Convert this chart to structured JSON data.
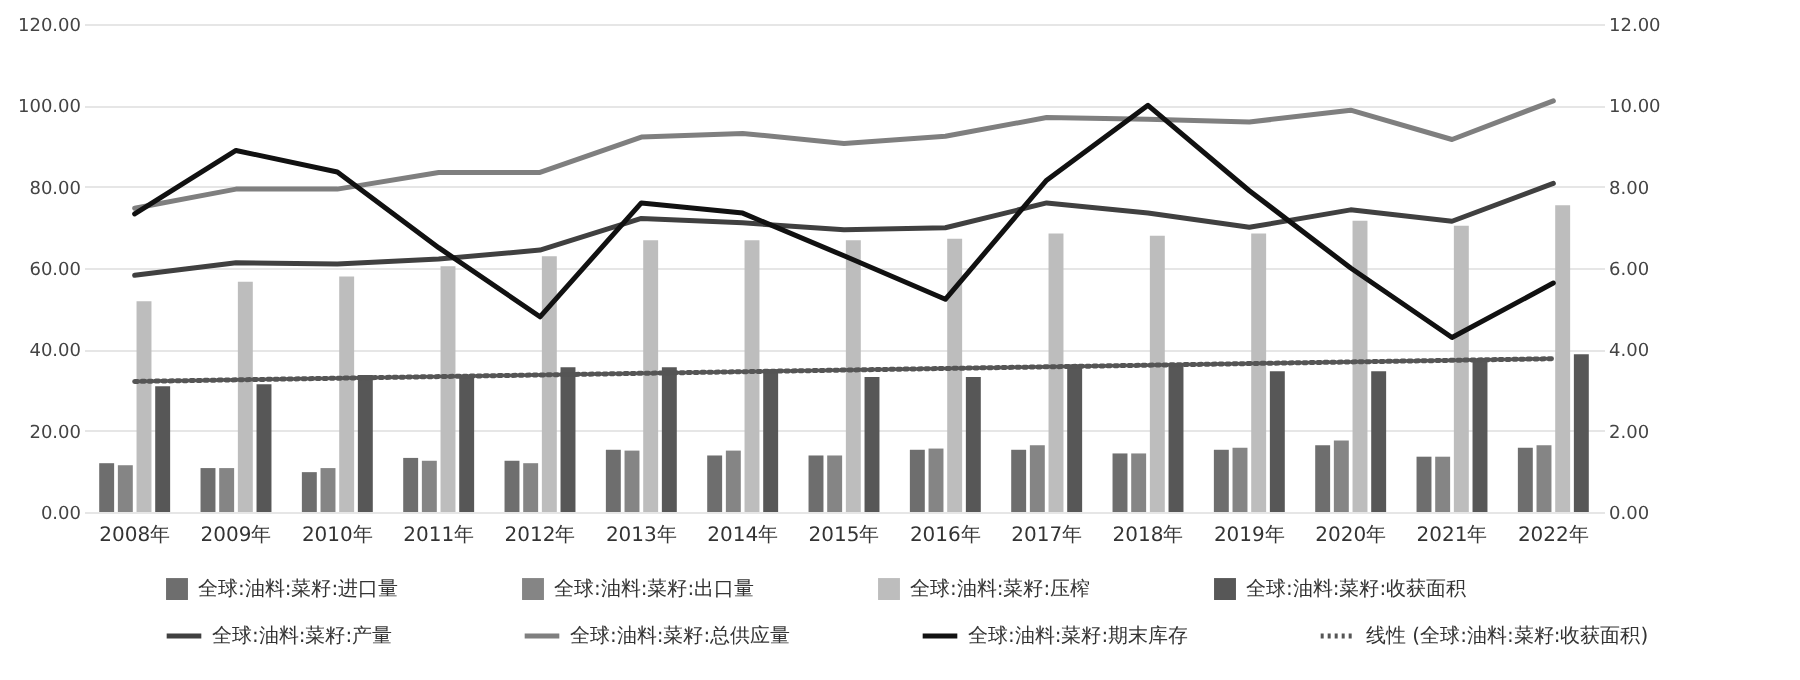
{
  "chart_data": {
    "type": "bar",
    "categories": [
      "2008年",
      "2009年",
      "2010年",
      "2011年",
      "2012年",
      "2013年",
      "2014年",
      "2015年",
      "2016年",
      "2017年",
      "2018年",
      "2019年",
      "2020年",
      "2021年",
      "2022年"
    ],
    "series": [
      {
        "name": "全球:油料:菜籽:进口量",
        "color": "#6e6e6e",
        "values": [
          12.0,
          10.8,
          9.8,
          13.3,
          12.6,
          15.3,
          13.9,
          13.9,
          15.3,
          15.3,
          14.4,
          15.3,
          16.4,
          13.6,
          15.8
        ]
      },
      {
        "name": "全球:油料:菜籽:出口量",
        "color": "#858585",
        "values": [
          11.5,
          10.8,
          10.8,
          12.6,
          12.0,
          15.1,
          15.1,
          13.9,
          15.6,
          16.4,
          14.4,
          15.8,
          17.6,
          13.6,
          16.4
        ]
      },
      {
        "name": "全球:油料:菜籽:压榨",
        "color": "#bdbdbd",
        "values": [
          51.8,
          56.6,
          57.9,
          60.4,
          62.9,
          66.8,
          66.8,
          66.8,
          67.2,
          68.5,
          67.9,
          68.5,
          71.6,
          70.4,
          75.4
        ]
      },
      {
        "name": "全球:油料:菜籽:收获面积",
        "color": "#575757",
        "values": [
          30.9,
          31.4,
          33.7,
          33.2,
          35.6,
          35.6,
          35.1,
          33.2,
          33.2,
          36.3,
          36.3,
          34.6,
          34.6,
          37.6,
          38.8
        ]
      },
      {
        "name": "全球:油料:菜籽:产量",
        "type": "line",
        "color": "#404040",
        "line_style": "solid",
        "values": [
          58.2,
          61.3,
          61.0,
          62.2,
          64.4,
          72.2,
          71.1,
          69.4,
          69.9,
          76.0,
          73.5,
          70.0,
          74.3,
          71.5,
          80.8
        ]
      },
      {
        "name": "全球:油料:菜籽:总供应量",
        "type": "line",
        "color": "#7f7f7f",
        "line_style": "solid",
        "values": [
          74.7,
          79.4,
          79.4,
          83.5,
          83.5,
          92.2,
          93.1,
          90.6,
          92.4,
          97.0,
          96.6,
          95.9,
          98.8,
          91.6,
          101.1
        ]
      },
      {
        "name": "全球:油料:菜籽:期末库存",
        "type": "line",
        "axis": "y2",
        "color": "#111111",
        "line_style": "solid",
        "values": [
          7.33,
          8.89,
          8.36,
          6.5,
          4.8,
          7.6,
          7.35,
          6.3,
          5.23,
          8.16,
          10.0,
          7.9,
          6.0,
          4.29,
          5.63
        ]
      },
      {
        "name": "线性 (全球:油料:菜籽:收获面积)",
        "type": "line",
        "color": "#555555",
        "line_style": "dotted",
        "values": [
          32.1,
          32.5,
          32.9,
          33.3,
          33.7,
          34.1,
          34.5,
          34.9,
          35.3,
          35.7,
          36.1,
          36.5,
          36.9,
          37.3,
          37.7
        ]
      }
    ],
    "ylim": [
      0,
      120
    ],
    "yticks": [
      {
        "value": 0,
        "label": "0.00"
      },
      {
        "value": 20,
        "label": "20.00"
      },
      {
        "value": 40,
        "label": "40.00"
      },
      {
        "value": 60,
        "label": "60.00"
      },
      {
        "value": 80,
        "label": "80.00"
      },
      {
        "value": 100,
        "label": "100.00"
      },
      {
        "value": 120,
        "label": "120.00"
      }
    ],
    "y2lim": [
      0,
      12
    ],
    "y2ticks": [
      {
        "value": 0,
        "label": "0.00"
      },
      {
        "value": 2,
        "label": "2.00"
      },
      {
        "value": 4,
        "label": "4.00"
      },
      {
        "value": 6,
        "label": "6.00"
      },
      {
        "value": 8,
        "label": "8.00"
      },
      {
        "value": 10,
        "label": "10.00"
      },
      {
        "value": 12,
        "label": "12.00"
      }
    ],
    "grid": "y",
    "legend": "bottom"
  }
}
